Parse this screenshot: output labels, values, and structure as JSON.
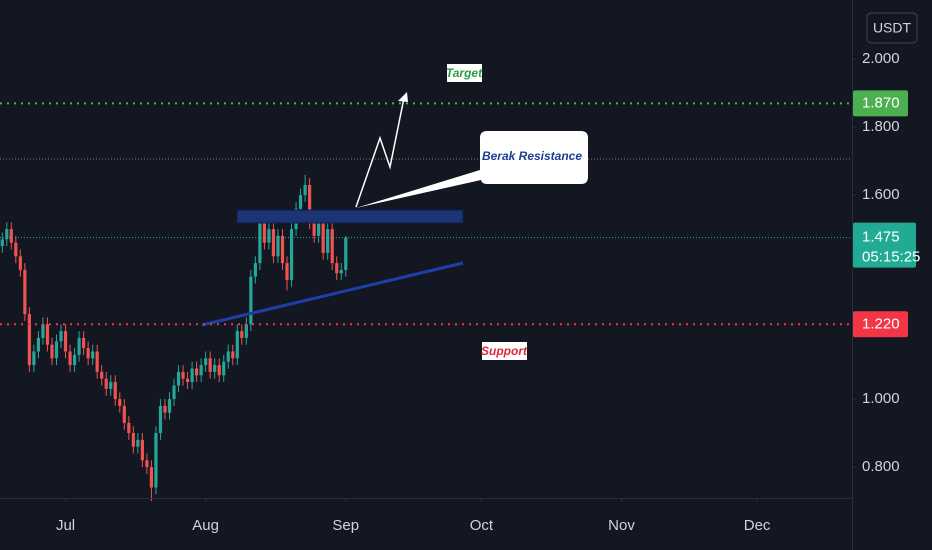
{
  "chart_data": {
    "type": "candlestick",
    "currency": "USDT",
    "x": [
      0,
      1,
      2,
      3,
      4,
      5,
      6,
      7,
      8,
      9,
      10,
      11,
      12,
      13,
      14,
      15,
      16,
      17,
      18,
      19,
      20,
      21,
      22,
      23,
      24,
      25,
      26,
      27,
      28,
      29,
      30,
      31,
      32,
      33,
      34,
      35,
      36,
      37,
      38,
      39,
      40,
      41,
      42,
      43,
      44,
      45,
      46,
      47,
      48,
      49,
      50,
      51,
      52,
      53,
      54,
      55,
      56,
      57,
      58,
      59,
      60,
      61,
      62,
      63,
      64,
      65,
      66,
      67,
      68,
      69,
      70,
      71,
      72,
      73,
      74,
      75,
      76
    ],
    "open": [
      1.45,
      1.47,
      1.5,
      1.46,
      1.42,
      1.38,
      1.25,
      1.1,
      1.14,
      1.18,
      1.22,
      1.16,
      1.12,
      1.17,
      1.2,
      1.14,
      1.1,
      1.13,
      1.18,
      1.15,
      1.12,
      1.14,
      1.08,
      1.06,
      1.03,
      1.05,
      1.0,
      0.98,
      0.93,
      0.9,
      0.86,
      0.88,
      0.82,
      0.8,
      0.74,
      0.9,
      0.98,
      0.96,
      1.0,
      1.04,
      1.08,
      1.06,
      1.05,
      1.09,
      1.07,
      1.1,
      1.12,
      1.08,
      1.1,
      1.07,
      1.11,
      1.14,
      1.12,
      1.2,
      1.18,
      1.22,
      1.36,
      1.4,
      1.52,
      1.46,
      1.5,
      1.42,
      1.48,
      1.4,
      1.35,
      1.5,
      1.56,
      1.6,
      1.63,
      1.52,
      1.48,
      1.52,
      1.43,
      1.5,
      1.4,
      1.37,
      1.38
    ],
    "high": [
      1.49,
      1.52,
      1.52,
      1.48,
      1.44,
      1.4,
      1.27,
      1.16,
      1.2,
      1.24,
      1.24,
      1.18,
      1.19,
      1.22,
      1.22,
      1.16,
      1.15,
      1.2,
      1.2,
      1.17,
      1.16,
      1.16,
      1.1,
      1.08,
      1.07,
      1.07,
      1.02,
      1.0,
      0.95,
      0.92,
      0.9,
      0.9,
      0.84,
      0.82,
      0.92,
      1.0,
      1.0,
      1.02,
      1.06,
      1.1,
      1.1,
      1.08,
      1.11,
      1.11,
      1.12,
      1.14,
      1.14,
      1.12,
      1.12,
      1.13,
      1.16,
      1.16,
      1.22,
      1.22,
      1.24,
      1.38,
      1.42,
      1.54,
      1.54,
      1.52,
      1.52,
      1.5,
      1.5,
      1.42,
      1.52,
      1.58,
      1.62,
      1.66,
      1.65,
      1.54,
      1.54,
      1.54,
      1.52,
      1.52,
      1.42,
      1.4,
      1.48
    ],
    "low": [
      1.43,
      1.45,
      1.44,
      1.4,
      1.36,
      1.23,
      1.08,
      1.08,
      1.12,
      1.16,
      1.14,
      1.1,
      1.1,
      1.15,
      1.12,
      1.08,
      1.08,
      1.11,
      1.13,
      1.1,
      1.1,
      1.06,
      1.04,
      1.01,
      1.01,
      0.98,
      0.96,
      0.91,
      0.88,
      0.84,
      0.84,
      0.8,
      0.78,
      0.7,
      0.72,
      0.88,
      0.94,
      0.94,
      0.98,
      1.02,
      1.04,
      1.03,
      1.03,
      1.05,
      1.05,
      1.08,
      1.06,
      1.06,
      1.05,
      1.05,
      1.09,
      1.1,
      1.1,
      1.16,
      1.16,
      1.2,
      1.34,
      1.38,
      1.44,
      1.44,
      1.4,
      1.4,
      1.38,
      1.32,
      1.33,
      1.48,
      1.54,
      1.58,
      1.5,
      1.46,
      1.46,
      1.41,
      1.41,
      1.38,
      1.35,
      1.35,
      1.36
    ],
    "close": [
      1.47,
      1.5,
      1.46,
      1.42,
      1.38,
      1.25,
      1.1,
      1.14,
      1.18,
      1.22,
      1.16,
      1.12,
      1.17,
      1.2,
      1.14,
      1.1,
      1.13,
      1.18,
      1.15,
      1.12,
      1.14,
      1.08,
      1.06,
      1.03,
      1.05,
      1.0,
      0.98,
      0.93,
      0.9,
      0.86,
      0.88,
      0.82,
      0.8,
      0.74,
      0.9,
      0.98,
      0.96,
      1.0,
      1.04,
      1.08,
      1.06,
      1.05,
      1.09,
      1.07,
      1.1,
      1.12,
      1.08,
      1.1,
      1.07,
      1.11,
      1.14,
      1.12,
      1.2,
      1.18,
      1.22,
      1.36,
      1.4,
      1.52,
      1.46,
      1.5,
      1.42,
      1.48,
      1.4,
      1.35,
      1.5,
      1.56,
      1.6,
      1.63,
      1.52,
      1.48,
      1.52,
      1.43,
      1.5,
      1.4,
      1.37,
      1.38,
      1.475
    ],
    "up_color": "#26a69a",
    "down_color": "#ef5350",
    "xlim": [
      -0.5,
      188
    ],
    "xticks": [
      {
        "value": 14,
        "label": "Jul"
      },
      {
        "value": 45,
        "label": "Aug"
      },
      {
        "value": 76,
        "label": "Sep"
      },
      {
        "value": 106,
        "label": "Oct"
      },
      {
        "value": 137,
        "label": "Nov"
      },
      {
        "value": 167,
        "label": "Dec"
      }
    ],
    "ylim": [
      0.709,
      2.174
    ],
    "yticks": [
      {
        "value": 2.0,
        "label": "2.000"
      },
      {
        "value": 1.8,
        "label": "1.800"
      },
      {
        "value": 1.6,
        "label": "1.600"
      },
      {
        "value": 1.0,
        "label": "1.000"
      },
      {
        "value": 0.8,
        "label": "0.800"
      }
    ],
    "levels": [
      {
        "value": 1.87,
        "label": "1.870",
        "color": "#4caf50"
      },
      {
        "value": 1.22,
        "label": "1.220",
        "color": "#f23645"
      }
    ],
    "last_price": 1.475,
    "last_price_color": "#22ab94",
    "countdown": "05:15:25",
    "annotations": {
      "target": "Target",
      "resistance": "Berak Resistance",
      "support": "Support"
    }
  }
}
